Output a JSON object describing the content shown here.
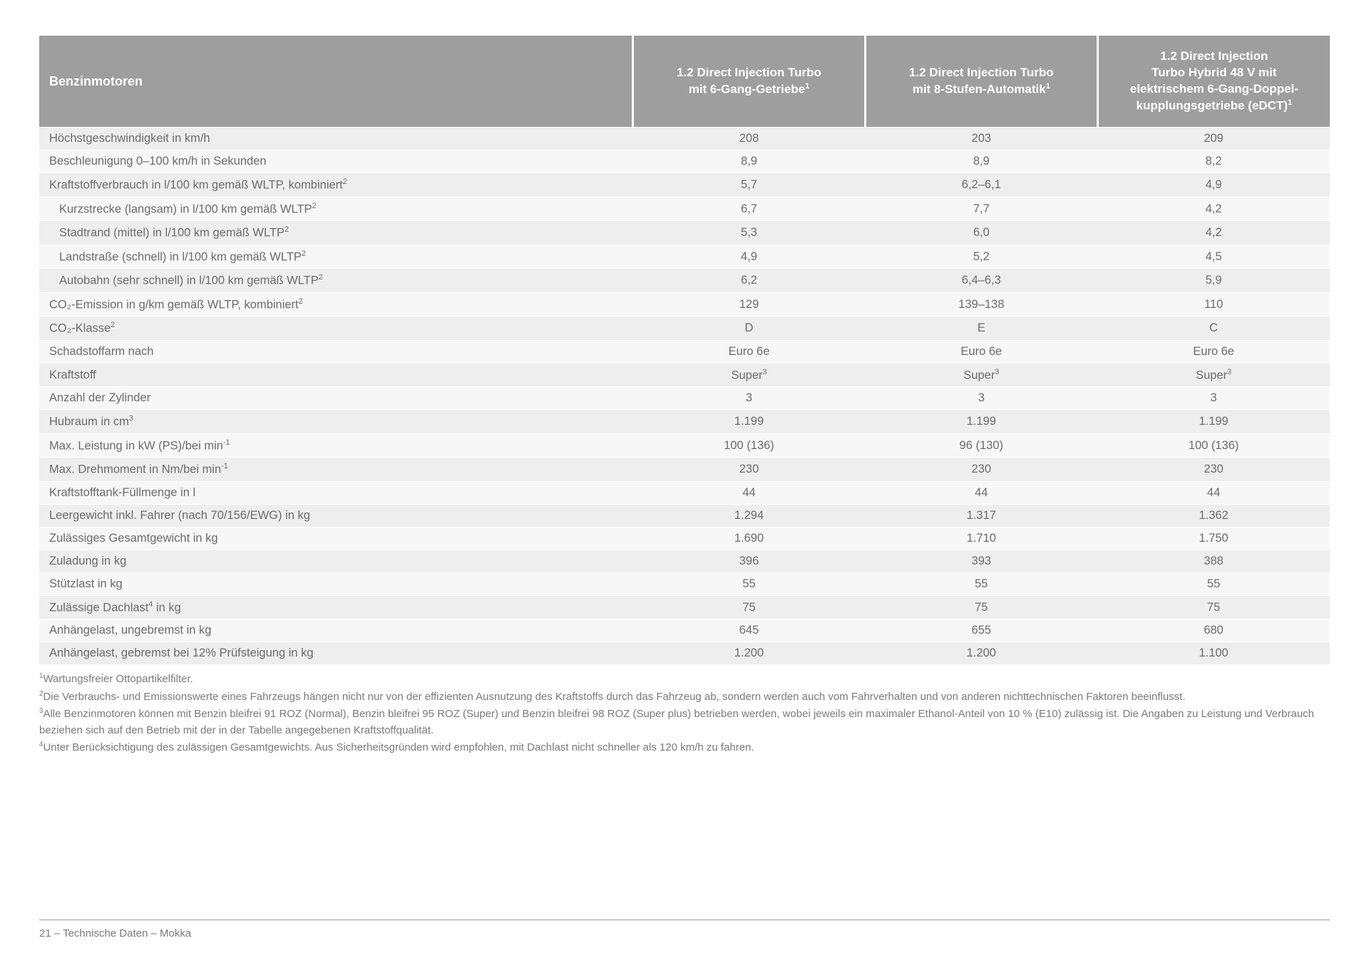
{
  "table": {
    "header": {
      "title": "Benzinmotoren",
      "columns": [
        {
          "line1": "1.2 Direct Injection Turbo",
          "line2": "mit 6-Gang-Getriebe",
          "sup": "1"
        },
        {
          "line1": "1.2 Direct Injection Turbo",
          "line2": "mit 8-Stufen-Automatik",
          "sup": "1"
        },
        {
          "line1": "1.2 Direct Injection",
          "line2": "Turbo Hybrid 48 V mit",
          "line3": "elektrischem 6-Gang-Doppel-",
          "line4": "kupplungsgetriebe (eDCT)",
          "sup": "1"
        }
      ]
    },
    "rows": [
      {
        "label": "Höchstgeschwindigkeit in km/h",
        "values": [
          "208",
          "203",
          "209"
        ]
      },
      {
        "label": "Beschleunigung 0–100 km/h in Sekunden",
        "values": [
          "8,9",
          "8,9",
          "8,2"
        ]
      },
      {
        "label": "Kraftstoffverbrauch in l/100 km gemäß WLTP, kombiniert",
        "sup": "2",
        "values": [
          "5,7",
          "6,2–6,1",
          "4,9"
        ]
      },
      {
        "label": "Kurzstrecke (langsam) in l/100 km gemäß WLTP",
        "sup": "2",
        "indent": true,
        "values": [
          "6,7",
          "7,7",
          "4,2"
        ]
      },
      {
        "label": "Stadtrand (mittel) in l/100 km gemäß WLTP",
        "sup": "2",
        "indent": true,
        "values": [
          "5,3",
          "6,0",
          "4,2"
        ]
      },
      {
        "label": "Landstraße (schnell) in l/100 km gemäß WLTP",
        "sup": "2",
        "indent": true,
        "values": [
          "4,9",
          "5,2",
          "4,5"
        ]
      },
      {
        "label": "Autobahn (sehr schnell) in l/100 km gemäß WLTP",
        "sup": "2",
        "indent": true,
        "values": [
          "6,2",
          "6,4–6,3",
          "5,9"
        ]
      },
      {
        "label": "CO₂-Emission in g/km gemäß WLTP, kombiniert",
        "sup": "2",
        "values": [
          "129",
          "139–138",
          "110"
        ]
      },
      {
        "label": "CO₂-Klasse",
        "sup": "2",
        "values": [
          "D",
          "E",
          "C"
        ]
      },
      {
        "label": "Schadstoffarm nach",
        "values": [
          "Euro 6e",
          "Euro 6e",
          "Euro 6e"
        ]
      },
      {
        "label": "Kraftstoff",
        "values_sup": "3",
        "values": [
          "Super",
          "Super",
          "Super"
        ]
      },
      {
        "label": "Anzahl der Zylinder",
        "values": [
          "3",
          "3",
          "3"
        ]
      },
      {
        "label": "Hubraum in cm",
        "sup": "3",
        "values": [
          "1.199",
          "1.199",
          "1.199"
        ]
      },
      {
        "label": "Max. Leistung in kW (PS)/bei min",
        "sup": "-1",
        "values": [
          "100 (136)",
          "96 (130)",
          "100 (136)"
        ]
      },
      {
        "label": "Max. Drehmoment in Nm/bei min",
        "sup": "-1",
        "values": [
          "230",
          "230",
          "230"
        ]
      },
      {
        "label": "Kraftstofftank-Füllmenge in l",
        "values": [
          "44",
          "44",
          "44"
        ]
      },
      {
        "label": "Leergewicht inkl. Fahrer (nach 70/156/EWG) in kg",
        "values": [
          "1.294",
          "1.317",
          "1.362"
        ]
      },
      {
        "label": "Zulässiges Gesamtgewicht in kg",
        "values": [
          "1.690",
          "1.710",
          "1.750"
        ]
      },
      {
        "label": "Zuladung in kg",
        "values": [
          "396",
          "393",
          "388"
        ]
      },
      {
        "label": "Stützlast in kg",
        "values": [
          "55",
          "55",
          "55"
        ]
      },
      {
        "label": "Zulässige Dachlast",
        "sup": "4",
        "label_suffix": " in kg",
        "values": [
          "75",
          "75",
          "75"
        ]
      },
      {
        "label": "Anhängelast, ungebremst in kg",
        "values": [
          "645",
          "655",
          "680"
        ]
      },
      {
        "label": "Anhängelast, gebremst bei 12% Prüfsteigung in kg",
        "values": [
          "1.200",
          "1.200",
          "1.100"
        ]
      }
    ]
  },
  "footnotes": [
    {
      "sup": "1",
      "text": "Wartungsfreier Ottopartikelfilter."
    },
    {
      "sup": "2",
      "text": "Die Verbrauchs- und Emissionswerte eines Fahrzeugs hängen nicht nur von der effizienten Ausnutzung des Kraftstoffs durch das Fahrzeug ab, sondern werden auch vom Fahrverhalten und von anderen nichttechnischen Faktoren beeinflusst."
    },
    {
      "sup": "3",
      "text": "Alle Benzinmotoren können mit Benzin bleifrei 91 ROZ (Normal), Benzin bleifrei 95 ROZ (Super) und Benzin bleifrei 98 ROZ (Super plus) betrieben werden, wobei jeweils ein maximaler Ethanol-Anteil von 10 % (E10) zulässig ist. Die Angaben zu Leistung und Verbrauch beziehen sich auf den Betrieb mit der in der Tabelle angegebenen Kraftstoffqualität."
    },
    {
      "sup": "4",
      "text": "Unter Berücksichtigung des zulässigen Gesamtgewichts. Aus Sicherheitsgründen wird empfohlen, mit Dachlast nicht schneller als 120 km/h zu fahren."
    }
  ],
  "footer": "21 – Technische Daten – Mokka"
}
